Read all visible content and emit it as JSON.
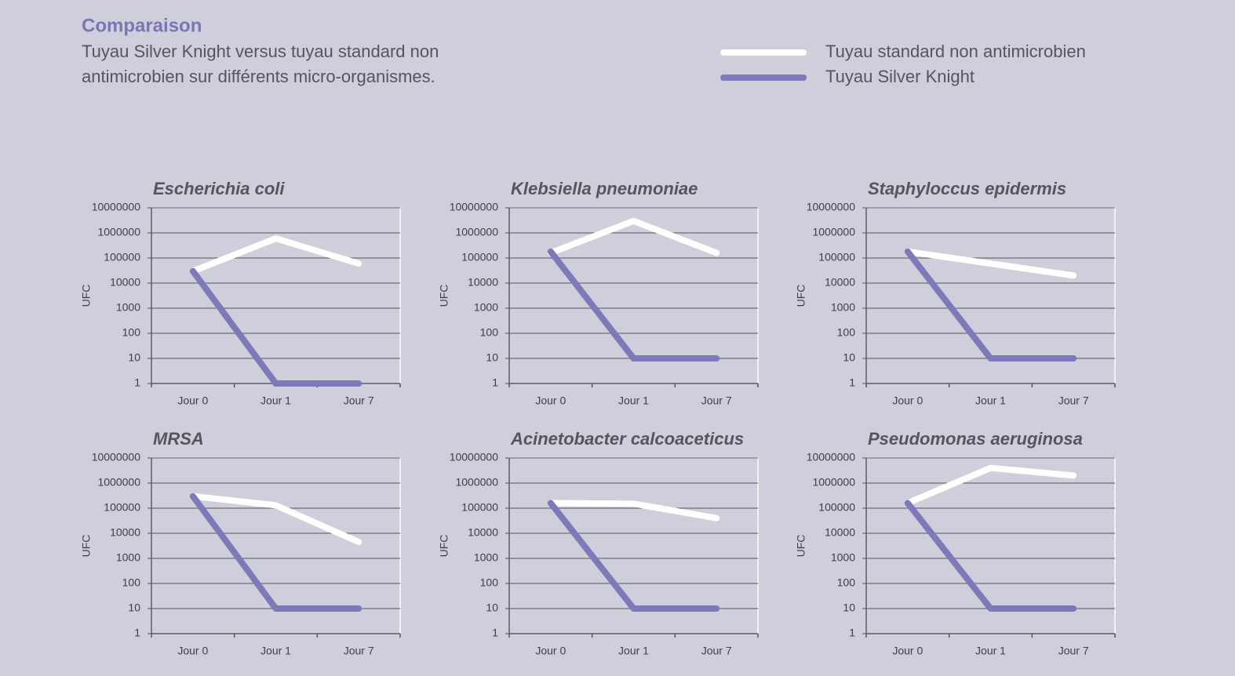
{
  "header": {
    "title": "Comparaison",
    "subtitle": [
      "Tuyau Silver Knight versus tuyau standard non",
      "antimicrobien sur différents micro-organismes."
    ]
  },
  "legend": [
    {
      "name": "Tuyau standard non antimicrobien",
      "color": "#ffffff"
    },
    {
      "name": "Tuyau Silver Knight",
      "color": "#7f78b9"
    }
  ],
  "chart_data": [
    {
      "type": "line",
      "title": "Escherichia coli",
      "ylabel": "UFC",
      "categories": [
        "Jour 0",
        "Jour 1",
        "Jour 7"
      ],
      "log_scale": true,
      "ylim": [
        1,
        10000000
      ],
      "yticks": [
        1,
        10,
        100,
        1000,
        10000,
        100000,
        1000000,
        10000000
      ],
      "grid": true,
      "series": [
        {
          "color": "#ffffff",
          "values": [
            30000,
            600000,
            60000
          ]
        },
        {
          "color": "#7f78b9",
          "values": [
            30000,
            1,
            1
          ]
        }
      ]
    },
    {
      "type": "line",
      "title": "Klebsiella pneumoniae",
      "ylabel": "UFC",
      "categories": [
        "Jour 0",
        "Jour 1",
        "Jour 7"
      ],
      "log_scale": true,
      "ylim": [
        1,
        10000000
      ],
      "yticks": [
        1,
        10,
        100,
        1000,
        10000,
        100000,
        1000000,
        10000000
      ],
      "grid": true,
      "series": [
        {
          "color": "#ffffff",
          "values": [
            160000,
            3000000,
            160000
          ]
        },
        {
          "color": "#7f78b9",
          "values": [
            180000,
            10,
            10
          ]
        }
      ]
    },
    {
      "type": "line",
      "title": "Staphyloccus epidermis",
      "ylabel": "UFC",
      "categories": [
        "Jour 0",
        "Jour 1",
        "Jour 7"
      ],
      "log_scale": true,
      "ylim": [
        1,
        10000000
      ],
      "yticks": [
        1,
        10,
        100,
        1000,
        10000,
        100000,
        1000000,
        10000000
      ],
      "grid": true,
      "series": [
        {
          "color": "#ffffff",
          "values": [
            180000,
            60000,
            20000
          ]
        },
        {
          "color": "#7f78b9",
          "values": [
            180000,
            10,
            10
          ]
        }
      ]
    },
    {
      "type": "line",
      "title": "MRSA",
      "ylabel": "UFC",
      "categories": [
        "Jour 0",
        "Jour 1",
        "Jour 7"
      ],
      "log_scale": true,
      "ylim": [
        1,
        10000000
      ],
      "yticks": [
        1,
        10,
        100,
        1000,
        10000,
        100000,
        1000000,
        10000000
      ],
      "grid": true,
      "series": [
        {
          "color": "#ffffff",
          "values": [
            300000,
            130000,
            4500
          ]
        },
        {
          "color": "#7f78b9",
          "values": [
            300000,
            10,
            10
          ]
        }
      ]
    },
    {
      "type": "line",
      "title": "Acinetobacter calcoaceticus",
      "ylabel": "UFC",
      "categories": [
        "Jour 0",
        "Jour 1",
        "Jour 7"
      ],
      "log_scale": true,
      "ylim": [
        1,
        10000000
      ],
      "yticks": [
        1,
        10,
        100,
        1000,
        10000,
        100000,
        1000000,
        10000000
      ],
      "grid": true,
      "series": [
        {
          "color": "#ffffff",
          "values": [
            160000,
            150000,
            40000
          ]
        },
        {
          "color": "#7f78b9",
          "values": [
            160000,
            10,
            10
          ]
        }
      ]
    },
    {
      "type": "line",
      "title": "Pseudomonas aeruginosa",
      "ylabel": "UFC",
      "categories": [
        "Jour 0",
        "Jour 1",
        "Jour 7"
      ],
      "log_scale": true,
      "ylim": [
        1,
        10000000
      ],
      "yticks": [
        1,
        10,
        100,
        1000,
        10000,
        100000,
        1000000,
        10000000
      ],
      "grid": true,
      "series": [
        {
          "color": "#ffffff",
          "values": [
            160000,
            4000000,
            2000000
          ]
        },
        {
          "color": "#7f78b9",
          "values": [
            160000,
            10,
            10
          ]
        }
      ]
    }
  ]
}
